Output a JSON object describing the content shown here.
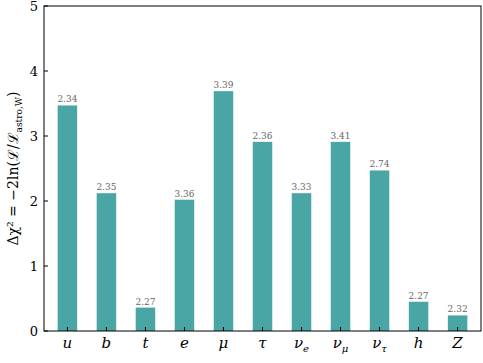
{
  "chart_data": {
    "type": "bar",
    "y_label": [
      "Δχ² = −2ln(ℒ/ℒ",
      "astro,W",
      ")"
    ],
    "categories": [
      "u",
      "b",
      "t",
      "e",
      "μ",
      "τ",
      "νe",
      "νμ",
      "ντ",
      "h",
      "Z"
    ],
    "values": [
      3.47,
      2.12,
      0.36,
      2.02,
      3.69,
      2.91,
      2.12,
      2.91,
      2.47,
      0.45,
      0.24
    ],
    "annotations": [
      2.34,
      2.35,
      2.27,
      3.36,
      3.39,
      2.36,
      3.33,
      3.41,
      2.74,
      2.27,
      2.32
    ],
    "color": "#4aa5a5",
    "ylim": [
      0,
      5
    ],
    "yticks": [
      0,
      1,
      2,
      3,
      4,
      5
    ],
    "grid": false
  }
}
